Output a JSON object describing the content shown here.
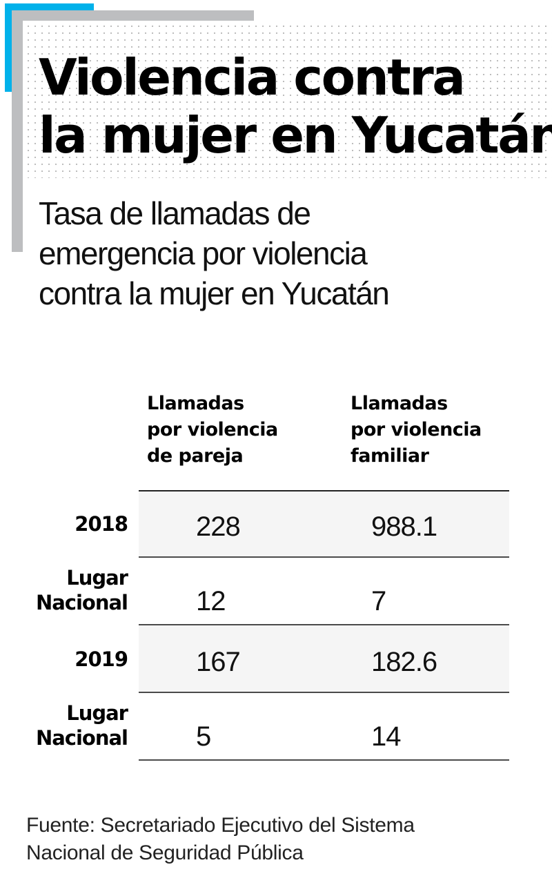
{
  "title": {
    "line1": "Violencia contra",
    "line2": "la mujer en Yucatán"
  },
  "subtitle": {
    "line1": "Tasa de llamadas de",
    "line2": "emergencia por violencia",
    "line3": "contra la mujer en Yucatán"
  },
  "colors": {
    "accent_blue": "#00b1ea",
    "accent_gray": "#bdbec0",
    "row_shade": "#f5f5f5"
  },
  "chart_data": {
    "type": "table",
    "title": "Violencia contra la mujer en Yucatán",
    "subtitle": "Tasa de llamadas de emergencia por violencia contra la mujer en Yucatán",
    "columns": [
      {
        "lines": [
          "Llamadas",
          "por violencia",
          "de pareja"
        ],
        "label": "Llamadas por violencia de pareja"
      },
      {
        "lines": [
          "Llamadas",
          "por violencia",
          "familiar"
        ],
        "label": "Llamadas por violencia familiar"
      }
    ],
    "rows": [
      {
        "label_lines": [
          "2018"
        ],
        "label": "2018",
        "values": [
          "228",
          "988.1"
        ]
      },
      {
        "label_lines": [
          "Lugar",
          "Nacional"
        ],
        "label": "Lugar Nacional",
        "values": [
          "12",
          "7"
        ]
      },
      {
        "label_lines": [
          "2019"
        ],
        "label": "2019",
        "values": [
          "167",
          "182.6"
        ]
      },
      {
        "label_lines": [
          "Lugar",
          "Nacional"
        ],
        "label": "Lugar Nacional",
        "values": [
          "5",
          "14"
        ]
      }
    ],
    "source": "Fuente: Secretariado Ejecutivo del Sistema Nacional de Seguridad Pública"
  },
  "source": {
    "line1": "Fuente: Secretariado Ejecutivo del Sistema",
    "line2": "Nacional de Seguridad Pública"
  }
}
